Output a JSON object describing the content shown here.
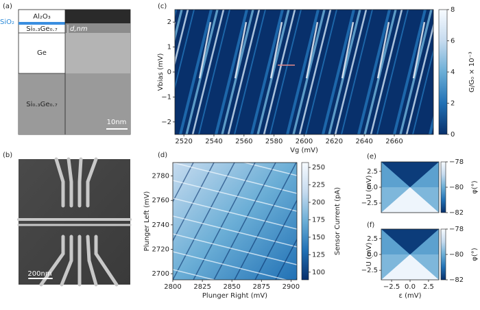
{
  "panels": {
    "a": {
      "label": "(a)",
      "layers": [
        "Al₂O₃",
        "Si₀.₃Ge₀.₇",
        "Ge",
        "Si₀.₃Ge₀.₇"
      ],
      "oxide": "SiO₂",
      "thickness": "d,nm",
      "scale_bar": "10nm"
    },
    "b": {
      "label": "(b)",
      "scale_bar": "200nm"
    }
  },
  "chart_data": [
    {
      "type": "heatmap",
      "label": "(c)",
      "xlabel": "Vg (mV)",
      "ylabel": "Vbias (mV)",
      "xlim": [
        2514,
        2686
      ],
      "xticks": [
        2520,
        2540,
        2560,
        2580,
        2600,
        2620,
        2640,
        2660
      ],
      "ylim": [
        -2.5,
        2.5
      ],
      "yticks": [
        {
          "value": -2,
          "label": "−2"
        },
        {
          "value": -1,
          "label": "−1"
        },
        0,
        1,
        2
      ],
      "colorbar": {
        "label": "G/G₀ × 10⁻³",
        "lim": [
          0,
          8
        ],
        "ticks": [
          0,
          2,
          4,
          6,
          8
        ]
      },
      "colormap": [
        "#08306b",
        "#2171b5",
        "#6baed6",
        "#c6dbef",
        "#f7fbff"
      ]
    },
    {
      "type": "heatmap",
      "label": "(d)",
      "xlabel": "Plunger Right (mV)",
      "ylabel": "Plunger Left (mV)",
      "xlim": [
        2800,
        2905
      ],
      "xticks": [
        2800,
        2825,
        2850,
        2875,
        2900
      ],
      "ylim": [
        2695,
        2791
      ],
      "yticks": [
        2700,
        2720,
        2740,
        2760,
        2780
      ],
      "colorbar": {
        "label": "Sensor Current (pA)",
        "lim": [
          89,
          257
        ],
        "ticks": [
          100,
          125,
          150,
          175,
          200,
          225,
          250
        ]
      },
      "colormap": [
        "#08306b",
        "#2171b5",
        "#6baed6",
        "#c6dbef",
        "#f7fbff"
      ]
    },
    {
      "type": "heatmap",
      "label": "(e)",
      "ylabel": "U (mV)",
      "xlim": [
        -3.9,
        3.9
      ],
      "ylim": [
        -4,
        4
      ],
      "yticks": [
        {
          "value": -2.5,
          "label": "−2.5"
        },
        {
          "value": 0,
          "label": "0.0"
        },
        2.5
      ],
      "colorbar": {
        "label": "φ(°)",
        "lim": [
          -82,
          -78
        ],
        "ticks": [
          {
            "value": -82,
            "label": "−82"
          },
          {
            "value": -80,
            "label": "−80"
          },
          {
            "value": -78,
            "label": "−78"
          }
        ]
      },
      "colormap": [
        "#08306b",
        "#2171b5",
        "#6baed6",
        "#c6dbef",
        "#f7fbff"
      ]
    },
    {
      "type": "heatmap",
      "label": "(f)",
      "xlabel": "ε (mV)",
      "ylabel": "U (mV)",
      "xlim": [
        -3.9,
        3.9
      ],
      "xticks": [
        {
          "value": -2.5,
          "label": "−2.5"
        },
        {
          "value": 0,
          "label": "0.0"
        },
        2.5
      ],
      "ylim": [
        -4,
        4
      ],
      "yticks": [
        {
          "value": -2.5,
          "label": "−2.5"
        },
        {
          "value": 0,
          "label": "0.0"
        },
        2.5
      ],
      "colorbar": {
        "label": "φ(°)",
        "lim": [
          -82,
          -78
        ],
        "ticks": [
          {
            "value": -82,
            "label": "−82"
          },
          {
            "value": -80,
            "label": "−80"
          },
          {
            "value": -78,
            "label": "−78"
          }
        ]
      },
      "colormap": [
        "#08306b",
        "#2171b5",
        "#6baed6",
        "#c6dbef",
        "#f7fbff"
      ]
    }
  ]
}
